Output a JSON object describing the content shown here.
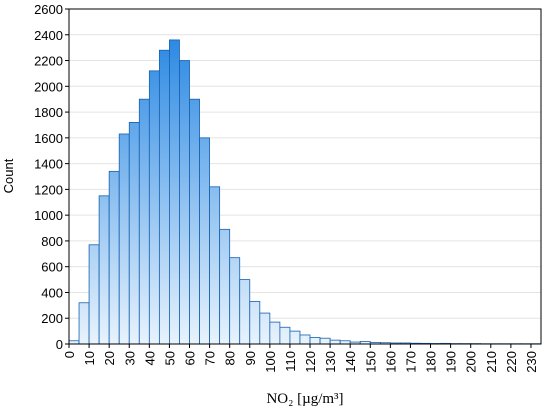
{
  "chart_data": {
    "type": "histogram",
    "xlabel": "NO₂ [µg/m³]",
    "ylabel": "Count",
    "bins": [
      0,
      5,
      10,
      15,
      20,
      25,
      30,
      35,
      40,
      45,
      50,
      55,
      60,
      65,
      70,
      75,
      80,
      85,
      90,
      95,
      100,
      105,
      110,
      115,
      120,
      125,
      130,
      135,
      140,
      145,
      150,
      155,
      160,
      165,
      170,
      175,
      180,
      185,
      190,
      195,
      200,
      205,
      210,
      215,
      220,
      225,
      230,
      235
    ],
    "counts": [
      25,
      320,
      770,
      1150,
      1340,
      1630,
      1720,
      1900,
      2120,
      2280,
      2360,
      2200,
      1900,
      1600,
      1220,
      890,
      670,
      500,
      330,
      240,
      170,
      130,
      100,
      70,
      50,
      45,
      30,
      25,
      15,
      20,
      12,
      10,
      8,
      8,
      6,
      5,
      4,
      5,
      3,
      3,
      3,
      2,
      2,
      2,
      2,
      2,
      2
    ],
    "color": "#1a7fe0",
    "xlim": [
      0,
      235
    ],
    "xticks": [
      0,
      10,
      20,
      30,
      40,
      50,
      60,
      70,
      80,
      90,
      100,
      110,
      120,
      130,
      140,
      150,
      160,
      170,
      180,
      190,
      200,
      210,
      220,
      230
    ],
    "ylim": [
      0,
      2600
    ],
    "yticks": [
      0,
      200,
      400,
      600,
      800,
      1000,
      1200,
      1400,
      1600,
      1800,
      2000,
      2200,
      2400,
      2600
    ],
    "grid": true
  }
}
